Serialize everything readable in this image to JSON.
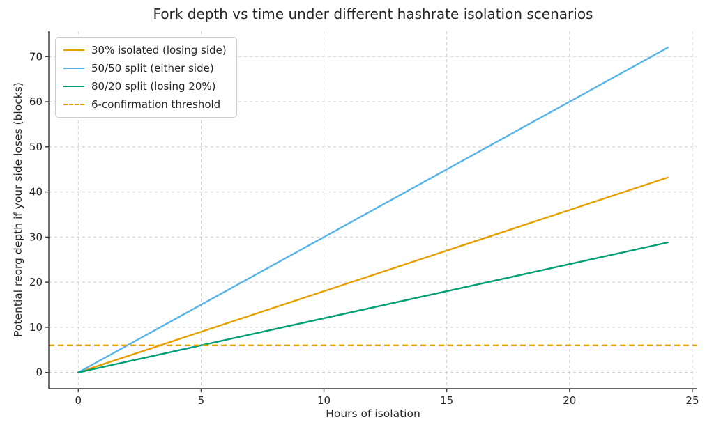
{
  "chart_data": {
    "type": "line",
    "title": "Fork depth vs time under different hashrate isolation scenarios",
    "xlabel": "Hours of isolation",
    "ylabel": "Potential reorg depth if your side loses (blocks)",
    "xlim": [
      -1.2,
      25.2
    ],
    "ylim": [
      -3.6,
      75.6
    ],
    "xticks": [
      0,
      5,
      10,
      15,
      20,
      25
    ],
    "yticks": [
      0,
      10,
      20,
      30,
      40,
      50,
      60,
      70
    ],
    "grid": true,
    "legend_position": "upper-left",
    "series": [
      {
        "name": "30% isolated (losing side)",
        "color": "#E69F00",
        "style": "solid",
        "x": [
          0,
          24
        ],
        "y": [
          0,
          43.2
        ]
      },
      {
        "name": "50/50 split (either side)",
        "color": "#56B4E9",
        "style": "solid",
        "x": [
          0,
          24
        ],
        "y": [
          0,
          72
        ]
      },
      {
        "name": "80/20 split (losing 20%)",
        "color": "#009E73",
        "style": "solid",
        "x": [
          0,
          24
        ],
        "y": [
          0,
          28.8
        ]
      },
      {
        "name": "6-confirmation threshold",
        "color": "#E69F00",
        "style": "dashed",
        "hline": 6
      }
    ],
    "colors": {
      "grid": "#cccccc",
      "spine": "#333333",
      "text": "#262626",
      "background": "#ffffff"
    }
  }
}
